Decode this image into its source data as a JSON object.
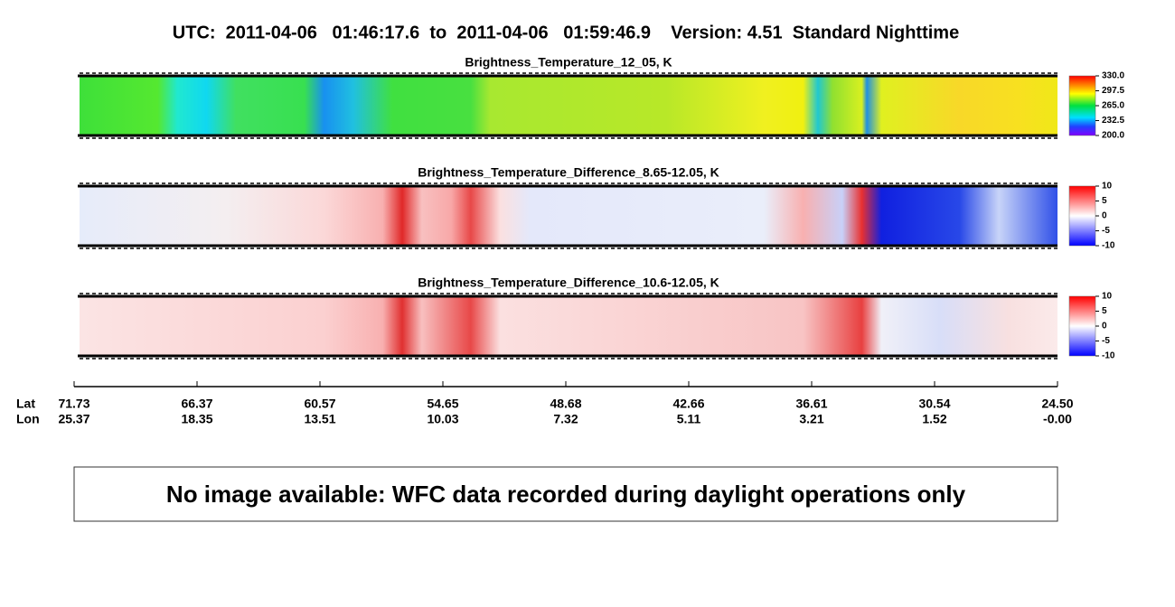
{
  "title": "UTC:  2011-04-06   01:46:17.6  to  2011-04-06   01:59:46.9    Version: 4.51  Standard Nighttime",
  "panels": [
    {
      "title": "Brightness_Temperature_12_05, K",
      "colorbar_ticks": [
        "330.0",
        "297.5",
        "265.0",
        "232.5",
        "200.0"
      ]
    },
    {
      "title": "Brightness_Temperature_Difference_8.65-12.05, K",
      "colorbar_ticks": [
        "10",
        "5",
        "0",
        "-5",
        "-10"
      ]
    },
    {
      "title": "Brightness_Temperature_Difference_10.6-12.05, K",
      "colorbar_ticks": [
        "10",
        "5",
        "0",
        "-5",
        "-10"
      ]
    }
  ],
  "axis": {
    "lat_label": "Lat",
    "lon_label": "Lon",
    "lat": [
      "71.73",
      "66.37",
      "60.57",
      "54.65",
      "48.68",
      "42.66",
      "36.61",
      "30.54",
      "24.50"
    ],
    "lon": [
      "25.37",
      "18.35",
      "13.51",
      "10.03",
      "7.32",
      "5.11",
      "3.21",
      "1.52",
      "-0.00"
    ]
  },
  "message": "No image available: WFC data recorded during daylight operations only"
}
